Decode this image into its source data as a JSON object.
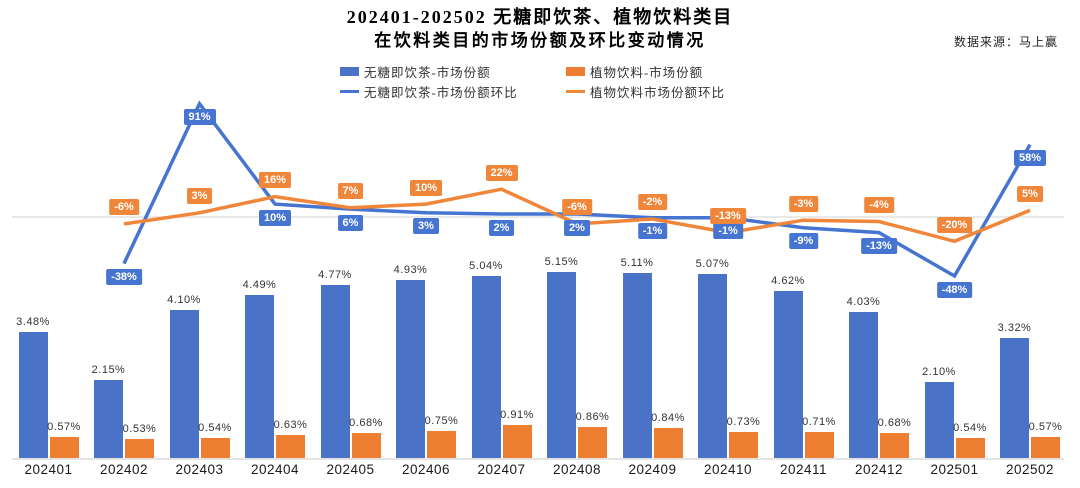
{
  "title": {
    "line1": "202401-202502 无糖即饮茶、植物饮料类目",
    "line2": "在饮料类目的市场份额及环比变动情况"
  },
  "source": "数据来源：马上赢",
  "colors": {
    "tea_bar": "#4A73C8",
    "plant_bar": "#ED7D31",
    "tea_line": "#4674D1",
    "plant_line": "#F0863A",
    "gridline": "#e9e9e9",
    "text": "#333333"
  },
  "legend": [
    {
      "label": "无糖即饮茶-市场份额",
      "swatch": "bar",
      "color": "#4A73C8"
    },
    {
      "label": "植物饮料-市场份额",
      "swatch": "bar",
      "color": "#ED7D31"
    },
    {
      "label": "无糖即饮茶-市场份额环比",
      "swatch": "line",
      "color": "#4674D1"
    },
    {
      "label": "植物饮料市场份额环比",
      "swatch": "line",
      "color": "#F0863A"
    }
  ],
  "chart_data": {
    "type": "bar+line combo",
    "title": "202401-202502 无糖即饮茶、植物饮料类目在饮料类目的市场份额及环比变动情况",
    "grid": "zero-line only",
    "legend_position": "top",
    "categories": [
      "202401",
      "202402",
      "202403",
      "202404",
      "202405",
      "202406",
      "202407",
      "202408",
      "202409",
      "202410",
      "202411",
      "202412",
      "202501",
      "202502"
    ],
    "series": [
      {
        "name": "无糖即饮茶-市场份额",
        "type": "bar",
        "unit": "%",
        "color": "#4A73C8",
        "values": [
          3.48,
          2.15,
          4.1,
          4.49,
          4.77,
          4.93,
          5.04,
          5.15,
          5.11,
          5.07,
          4.62,
          4.03,
          2.1,
          3.32
        ],
        "labels": [
          "3.48%",
          "2.15%",
          "4.10%",
          "4.49%",
          "4.77%",
          "4.93%",
          "5.04%",
          "5.15%",
          "5.11%",
          "5.07%",
          "4.62%",
          "4.03%",
          "2.10%",
          "3.32%"
        ]
      },
      {
        "name": "植物饮料-市场份额",
        "type": "bar",
        "unit": "%",
        "color": "#ED7D31",
        "values": [
          0.57,
          0.53,
          0.54,
          0.63,
          0.68,
          0.75,
          0.91,
          0.86,
          0.84,
          0.73,
          0.71,
          0.68,
          0.54,
          0.57
        ],
        "labels": [
          "0.57%",
          "0.53%",
          "0.54%",
          "0.63%",
          "0.68%",
          "0.75%",
          "0.91%",
          "0.86%",
          "0.84%",
          "0.73%",
          "0.71%",
          "0.68%",
          "0.54%",
          "0.57%"
        ]
      },
      {
        "name": "无糖即饮茶-市场份额环比",
        "type": "line",
        "unit": "%",
        "color": "#4674D1",
        "values": [
          null,
          -38,
          91,
          10,
          6,
          3,
          2,
          2,
          -1,
          -1,
          -9,
          -13,
          -48,
          58
        ],
        "labels": [
          null,
          "-38%",
          "91%",
          "10%",
          "6%",
          "3%",
          "2%",
          "2%",
          "-1%",
          "-1%",
          "-9%",
          "-13%",
          "-48%",
          "58%"
        ]
      },
      {
        "name": "植物饮料市场份额环比",
        "type": "line",
        "unit": "%",
        "color": "#F0863A",
        "values": [
          null,
          -6,
          3,
          16,
          7,
          10,
          22,
          -6,
          -2,
          -13,
          -3,
          -4,
          -20,
          5
        ],
        "labels": [
          null,
          "-6%",
          "3%",
          "16%",
          "7%",
          "10%",
          "22%",
          "-6%",
          "-2%",
          "-13%",
          "-3%",
          "-4%",
          "-20%",
          "5%"
        ]
      }
    ]
  }
}
